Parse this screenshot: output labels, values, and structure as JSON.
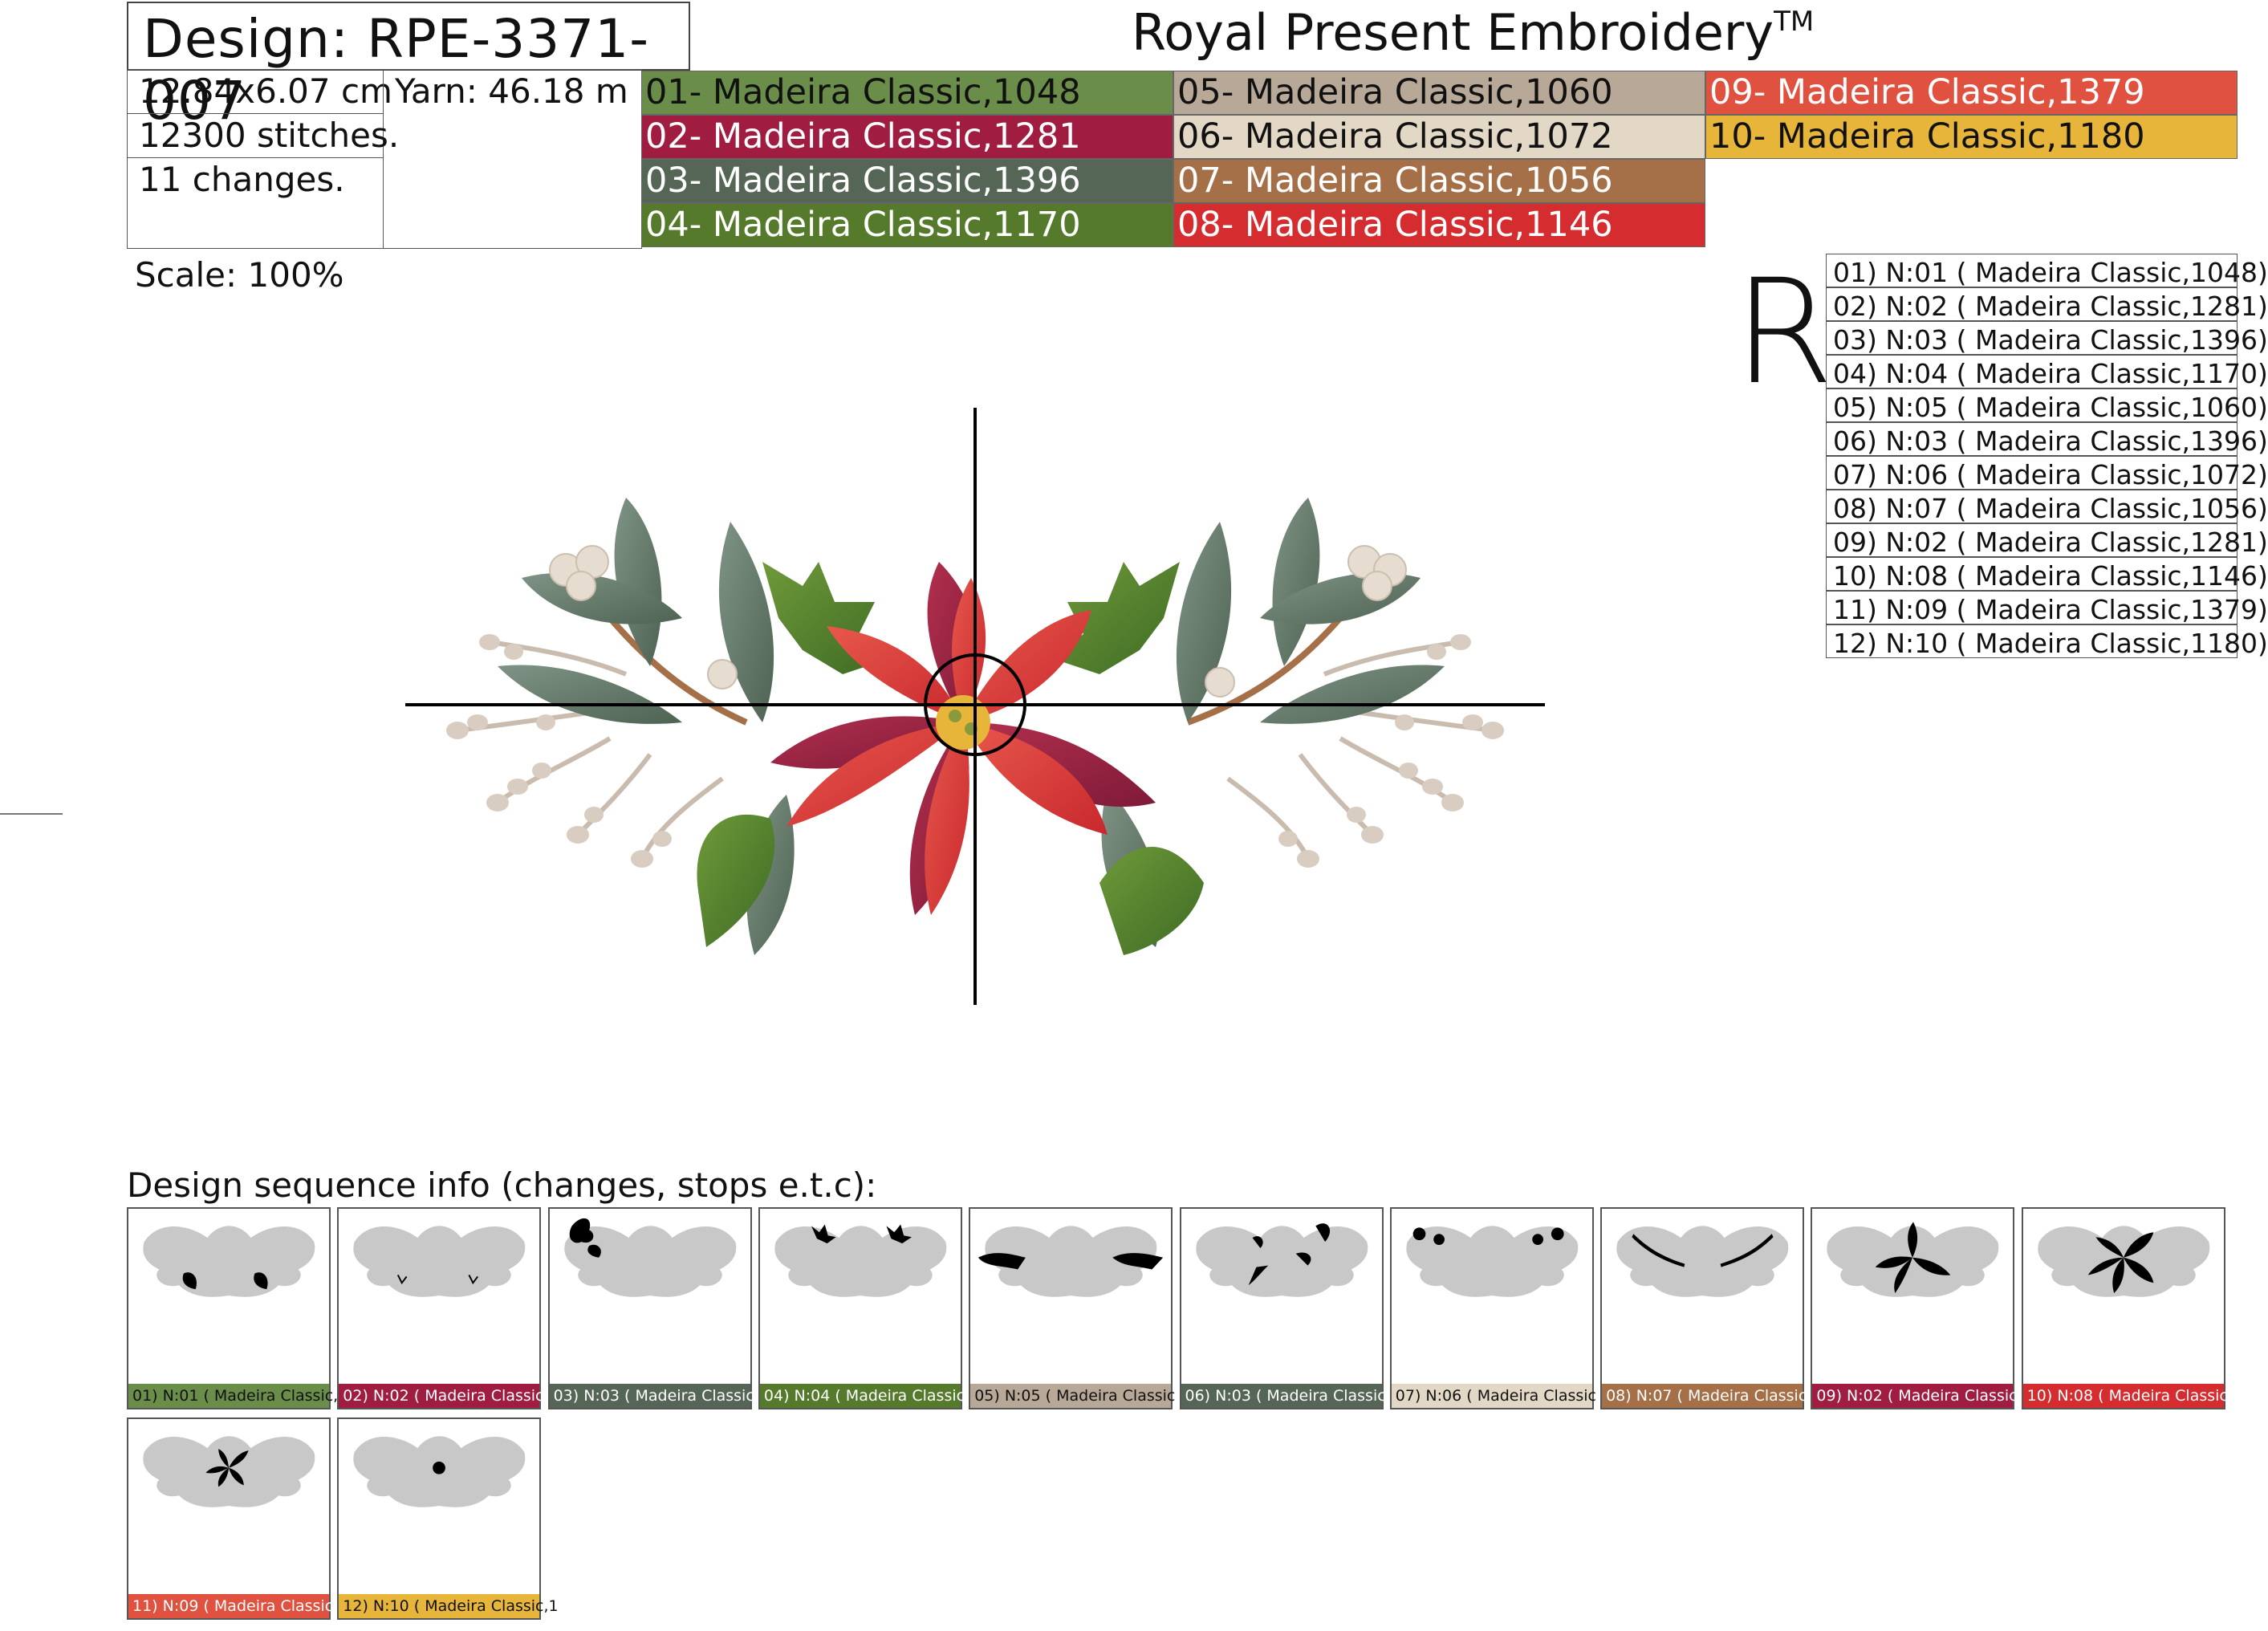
{
  "header": {
    "design_label": "Design: RPE-3371-007",
    "brand": "Royal Present Embroidery",
    "brand_mark": "TM"
  },
  "info": {
    "size": "12.84x6.07 cm",
    "yarn": "Yarn: 46.18 m",
    "stitches": "12300 stitches.",
    "changes": "11 changes."
  },
  "palette": [
    {
      "label": "01- Madeira Classic,1048",
      "bg": "#6b8d4a",
      "fg": "#111111"
    },
    {
      "label": "02- Madeira Classic,1281",
      "bg": "#a01c40",
      "fg": "#ffffff"
    },
    {
      "label": "03- Madeira Classic,1396",
      "bg": "#556656",
      "fg": "#ffffff"
    },
    {
      "label": "04- Madeira Classic,1170",
      "bg": "#557a2c",
      "fg": "#ffffff"
    },
    {
      "label": "05- Madeira Classic,1060",
      "bg": "#b8a898",
      "fg": "#111111"
    },
    {
      "label": "06- Madeira Classic,1072",
      "bg": "#e3d8c5",
      "fg": "#111111"
    },
    {
      "label": "07- Madeira Classic,1056",
      "bg": "#a56f47",
      "fg": "#ffffff"
    },
    {
      "label": "08- Madeira Classic,1146",
      "bg": "#d42c2f",
      "fg": "#ffffff"
    },
    {
      "label": "09- Madeira Classic,1379",
      "bg": "#e0523f",
      "fg": "#ffffff"
    },
    {
      "label": "10- Madeira Classic,1180",
      "bg": "#e6b53a",
      "fg": "#111111"
    }
  ],
  "scale": "Scale: 100%",
  "orientation_mark": "R",
  "sequence": [
    "01) N:01 ( Madeira Classic,1048)",
    "02) N:02 ( Madeira Classic,1281)",
    "03) N:03 ( Madeira Classic,1396)",
    "04) N:04 ( Madeira Classic,1170)",
    "05) N:05 ( Madeira Classic,1060)",
    "06) N:03 ( Madeira Classic,1396)",
    "07) N:06 ( Madeira Classic,1072)",
    "08) N:07 ( Madeira Classic,1056)",
    "09) N:02 ( Madeira Classic,1281)",
    "10) N:08 ( Madeira Classic,1146)",
    "11) N:09 ( Madeira Classic,1379)",
    "12) N:10 ( Madeira Classic,1180)"
  ],
  "sequence_title": "Design sequence info (changes, stops e.t.c):",
  "thumbnails": [
    {
      "label": "01) N:01 ( Madeira Classic,1",
      "bg": "#6b8d4a",
      "fg": "#111111",
      "mark": "bottom-leaves"
    },
    {
      "label": "02) N:02 ( Madeira Classic",
      "bg": "#a01c40",
      "fg": "#ffffff",
      "mark": "veins"
    },
    {
      "label": "03) N:03 ( Madeira Classic",
      "bg": "#556656",
      "fg": "#ffffff",
      "mark": "left-leaves"
    },
    {
      "label": "04) N:04 ( Madeira Classic",
      "bg": "#557a2c",
      "fg": "#ffffff",
      "mark": "holly"
    },
    {
      "label": "05) N:05 ( Madeira Classic",
      "bg": "#b8a898",
      "fg": "#111111",
      "mark": "berries"
    },
    {
      "label": "06) N:03 ( Madeira Classic",
      "bg": "#556656",
      "fg": "#ffffff",
      "mark": "scatter-leaves"
    },
    {
      "label": "07) N:06 ( Madeira Classic",
      "bg": "#e3d8c5",
      "fg": "#111111",
      "mark": "white-berries"
    },
    {
      "label": "08) N:07 ( Madeira Classic",
      "bg": "#a56f47",
      "fg": "#ffffff",
      "mark": "stems"
    },
    {
      "label": "09) N:02 ( Madeira Classic",
      "bg": "#a01c40",
      "fg": "#ffffff",
      "mark": "back-petals"
    },
    {
      "label": "10) N:08 ( Madeira Classic,",
      "bg": "#d42c2f",
      "fg": "#ffffff",
      "mark": "petals"
    },
    {
      "label": "11) N:09 ( Madeira Classic,1",
      "bg": "#e0523f",
      "fg": "#ffffff",
      "mark": "inner-petals"
    },
    {
      "label": "12) N:10 ( Madeira Classic,1",
      "bg": "#e6b53a",
      "fg": "#111111",
      "mark": "center"
    }
  ]
}
